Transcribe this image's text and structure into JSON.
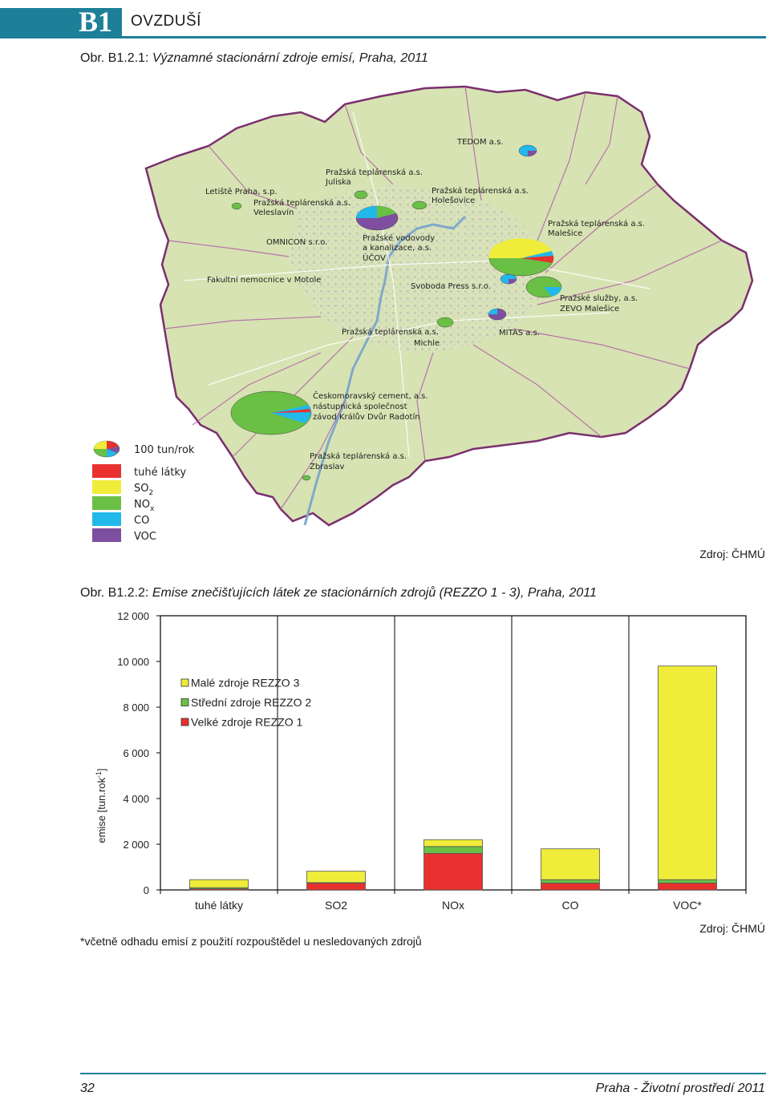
{
  "header": {
    "code": "B1",
    "section": "OVZDUŠÍ",
    "accent_color": "#1e7f99"
  },
  "figure1": {
    "caption_prefix": "Obr. B1.2.1:",
    "caption_text": " Významné stacionární zdroje emisí, Praha, 2011",
    "source": "Zdroj: ČHMÚ",
    "map_labels": [
      "TEDOM a.s.",
      "Pražská teplárenská a.s.",
      "Juliska",
      "Letiště Praha, s.p.",
      "Pražská teplárenská a.s.",
      "Veleslavín",
      "Pražská teplárenská a.s.",
      "Holešovice",
      "Pražská teplárenská a.s.",
      "Malešice",
      "OMNICON s.r.o.",
      "Pražské vodovody",
      "a kanalizace, a.s.",
      "ÚČOV",
      "Fakultní nemocnice v Motole",
      "Svoboda Press s.r.o.",
      "Pražské služby, a.s.",
      "ZEVO Malešice",
      "Pražská teplárenská a.s.",
      "Michle",
      "MITAS a.s.",
      "Českomoravský cement, a.s.",
      "nástupnická společnost",
      "závod Králův Dvůr Radotín",
      "Pražská teplárenská a.s.",
      "Zbraslav"
    ],
    "legend": {
      "scale_label": "100 tun/rok",
      "items": [
        {
          "label": "tuhé látky",
          "color": "#e8312f"
        },
        {
          "label": "SO",
          "sub": "2",
          "color": "#f0ec3a"
        },
        {
          "label": "NO",
          "sub": "x",
          "color": "#6abf45"
        },
        {
          "label": "CO",
          "color": "#22b8ea"
        },
        {
          "label": "VOC",
          "color": "#7e4fa0"
        }
      ]
    }
  },
  "figure2": {
    "caption_prefix": "Obr. B1.2.2:",
    "caption_text": " Emise znečišťujících látek ze stacionárních zdrojů (REZZO 1 - 3), Praha, 2011",
    "source": "Zdroj: ČHMÚ",
    "footnote": "*včetně odhadu emisí z použití rozpouštědel u nesledovaných zdrojů"
  },
  "chart_data": {
    "type": "bar",
    "stacked": true,
    "categories": [
      "tuhé látky",
      "SO2",
      "NOx",
      "CO",
      "VOC*"
    ],
    "ylabel": "emise [tun.rok-1]",
    "ylabel_main": "emise [tun.rok",
    "ylabel_sup": "-1",
    "ylabel_end": "]",
    "ylim": [
      0,
      12000
    ],
    "yticks": [
      0,
      2000,
      4000,
      6000,
      8000,
      10000,
      12000
    ],
    "ytick_labels": [
      "0",
      "2 000",
      "4 000",
      "6 000",
      "8 000",
      "10 000",
      "12 000"
    ],
    "grid": "vertical",
    "legend_position": "top-left",
    "series": [
      {
        "name": "Velké zdroje REZZO 1",
        "color": "#e8312f",
        "values": [
          50,
          300,
          1600,
          300,
          300
        ]
      },
      {
        "name": "Střední zdroje REZZO 2",
        "color": "#6abf45",
        "values": [
          50,
          20,
          300,
          150,
          150
        ]
      },
      {
        "name": "Malé zdroje REZZO 3",
        "color": "#f0ec3a",
        "values": [
          350,
          500,
          300,
          1350,
          9350
        ]
      }
    ],
    "legend_order": [
      "Malé zdroje REZZO 3",
      "Střední zdroje REZZO 2",
      "Velké zdroje REZZO 1"
    ]
  },
  "footer": {
    "page_number": "32",
    "title": "Praha - Životní prostředí 2011"
  }
}
